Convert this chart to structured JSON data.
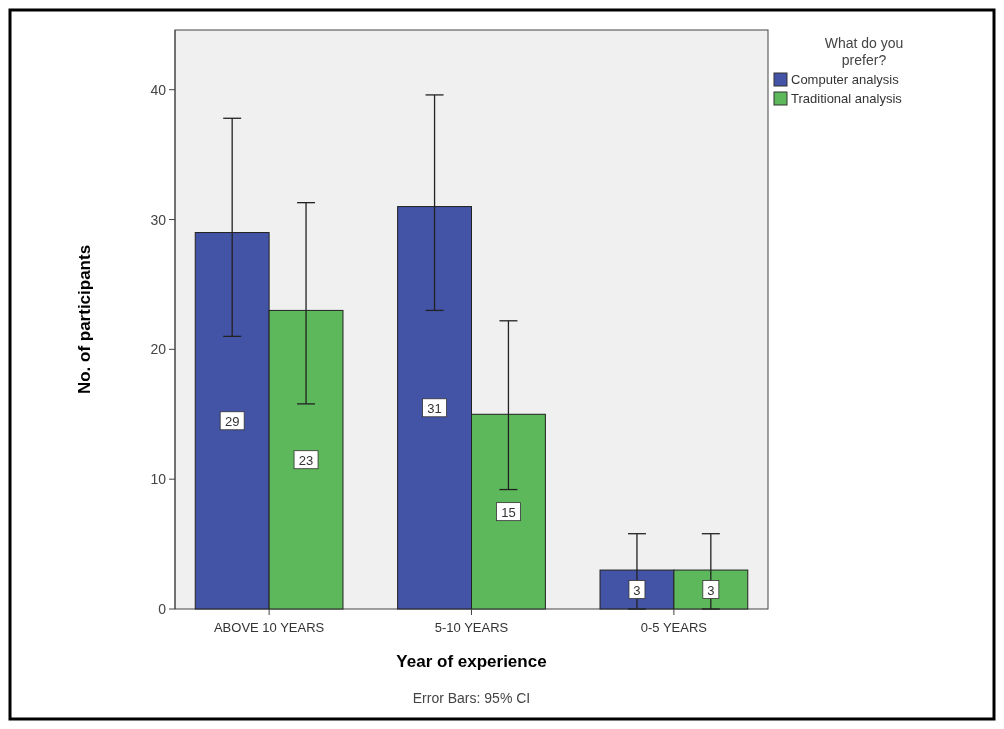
{
  "chart_data": {
    "type": "bar",
    "xlabel": "Year of experience",
    "ylabel": "No. of participants",
    "legend_title": "What do you prefer?",
    "categories": [
      "ABOVE 10 YEARS",
      "5-10 YEARS",
      "0-5 YEARS"
    ],
    "series": [
      {
        "name": "Computer analysis",
        "color": "#4353a6",
        "values": [
          29,
          31,
          3
        ],
        "errors": [
          [
            21.0,
            37.8
          ],
          [
            23.0,
            39.6
          ],
          [
            0,
            5.8
          ]
        ]
      },
      {
        "name": "Traditional analysis",
        "color": "#5cb85a",
        "values": [
          23,
          15,
          3
        ],
        "errors": [
          [
            15.8,
            31.3
          ],
          [
            9.2,
            22.2
          ],
          [
            0,
            5.8
          ]
        ]
      }
    ],
    "ylim": [
      0,
      44.6
    ],
    "yticks": [
      0,
      10,
      20,
      30,
      40
    ],
    "grid": false,
    "legend": "top right",
    "data_labels": true,
    "annotations": [
      "Error Bars: 95% CI"
    ]
  }
}
